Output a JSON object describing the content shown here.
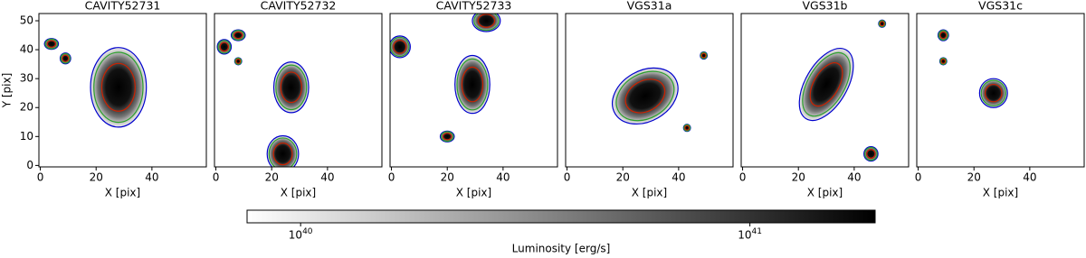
{
  "chart_data": [
    {
      "type": "image",
      "title": "CAVITY52731",
      "xlabel": "X [pix]",
      "ylabel": "Y [pix]",
      "xlim": [
        -0.5,
        59.5
      ],
      "ylim": [
        -0.5,
        52.5
      ],
      "xticks": [
        0,
        20,
        40
      ],
      "yticks": [
        0,
        10,
        20,
        30,
        40,
        50
      ]
    },
    {
      "type": "image",
      "title": "CAVITY52732",
      "xlabel": "X [pix]",
      "xlim": [
        -0.5,
        59.5
      ],
      "ylim": [
        -0.5,
        52.5
      ],
      "xticks": [
        0,
        20,
        40
      ]
    },
    {
      "type": "image",
      "title": "CAVITY52733",
      "xlabel": "X [pix]",
      "xlim": [
        -0.5,
        59.5
      ],
      "ylim": [
        -0.5,
        52.5
      ],
      "xticks": [
        0,
        20,
        40
      ]
    },
    {
      "type": "image",
      "title": "VGS31a",
      "xlabel": "X [pix]",
      "xlim": [
        -0.5,
        59.5
      ],
      "ylim": [
        -0.5,
        52.5
      ],
      "xticks": [
        0,
        20,
        40
      ]
    },
    {
      "type": "image",
      "title": "VGS31b",
      "xlabel": "X [pix]",
      "xlim": [
        -0.5,
        59.5
      ],
      "ylim": [
        -0.5,
        52.5
      ],
      "xticks": [
        0,
        20,
        40
      ]
    },
    {
      "type": "image",
      "title": "VGS31c",
      "xlabel": "X [pix]",
      "xlim": [
        -0.5,
        59.5
      ],
      "ylim": [
        -0.5,
        52.5
      ],
      "xticks": [
        0,
        20,
        40
      ]
    },
    {
      "type": "colorbar",
      "xlabel": "Luminosity [erg/s]",
      "log_x": true,
      "xlim": [
        7.6e+39,
        1.9e+41
      ],
      "xticks": [
        {
          "value": 1e+40,
          "label": "10^40"
        },
        {
          "value": 1e+41,
          "label": "10^41"
        }
      ]
    }
  ]
}
